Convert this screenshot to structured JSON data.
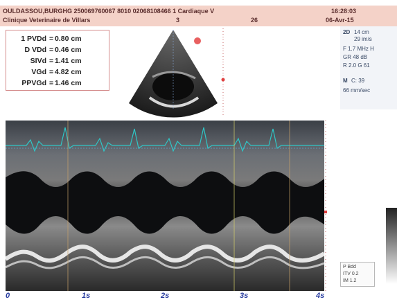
{
  "header": {
    "line1_left": "OULDASSOU,BURGHG 250069760067 8010 02068108466 1 Cardiaque V",
    "line1_time": "16:28:03",
    "line2_clinic": "Clinique Veterinaire de Villars",
    "line2_a": "3",
    "line2_b": "26",
    "line2_date": "06-Avr-15"
  },
  "measurements": [
    {
      "label": "1 PVDd",
      "value": "0.80 cm"
    },
    {
      "label": "D VDd",
      "value": "0.46 cm"
    },
    {
      "label": "SIVd",
      "value": "1.41 cm"
    },
    {
      "label": "VGd",
      "value": "4.82 cm"
    },
    {
      "label": "PPVGd",
      "value": "1.46 cm"
    }
  ],
  "side_panel": {
    "mode": "2D",
    "depth": "14 cm",
    "frame": "29 im/s",
    "freq": "F 1.7 MHz H",
    "gain": "GR 48 dB",
    "r": "R 2.0  G 61",
    "mmode": "M",
    "mmode_c": "C: 39",
    "sweep": "66 mm/sec"
  },
  "bottom_panel": {
    "l1": "P Bdd",
    "l2": "ITV 0.2",
    "l3": "IM 1.2"
  },
  "time_axis": [
    "0",
    "1s",
    "2s",
    "3s",
    "4s"
  ],
  "colors": {
    "header_bg": "#f4d2c8",
    "measure_border": "#d48a8a",
    "ecg": "#2fc7c7"
  }
}
